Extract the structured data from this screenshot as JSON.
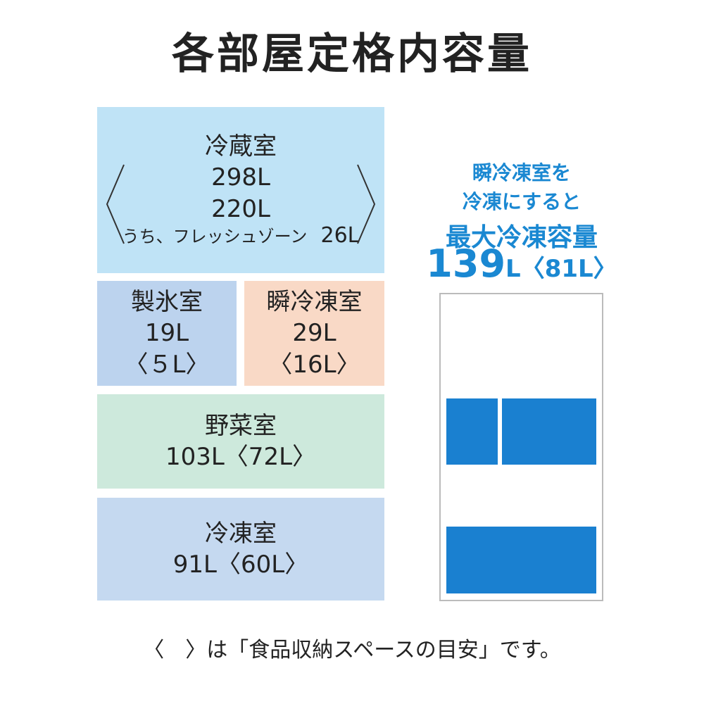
{
  "title": "各部屋定格内容量",
  "rooms": {
    "refrigerator": {
      "name": "冷蔵室",
      "capacity": "298L",
      "storage": "220L",
      "sub_label": "うち、フレッシュゾーン",
      "sub_value": "26L"
    },
    "ice": {
      "name": "製氷室",
      "capacity": "19L",
      "storage": "〈５L〉"
    },
    "instant_freeze": {
      "name": "瞬冷凍室",
      "capacity": "29L",
      "storage": "〈16L〉"
    },
    "vegetable": {
      "name": "野菜室",
      "capacity": "103L〈72L〉"
    },
    "freezer": {
      "name": "冷凍室",
      "capacity": "91L〈60L〉"
    }
  },
  "side": {
    "line1": "瞬冷凍室を",
    "line2": "冷凍にすると",
    "line3": "最大冷凍容量",
    "number": "139",
    "unit": "L",
    "storage": "〈81L〉"
  },
  "footnote": "〈　〉は「食品収納スペースの目安」です。"
}
